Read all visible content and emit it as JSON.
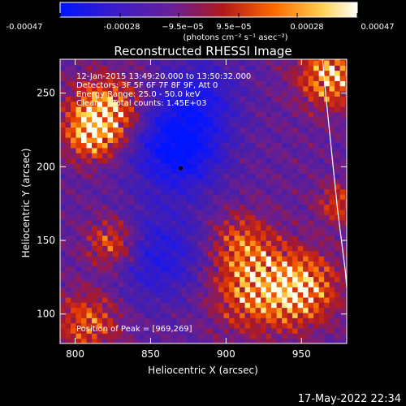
{
  "colorbar": {
    "ticks": [
      "-0.00047",
      "-0.00028",
      "−9.5e−05",
      "9.5e−05",
      "0.00028",
      "0.00047"
    ],
    "unit_label": "(photons cm⁻² s⁻¹ asec⁻²)",
    "colors": [
      "#0014ff",
      "#3a1cc8",
      "#6a2098",
      "#b01818",
      "#ff6a00",
      "#ffd050",
      "#ffffff"
    ]
  },
  "chart_data": {
    "type": "heatmap",
    "title": "Reconstructed RHESSI Image",
    "xlabel": "Heliocentric X (arcsec)",
    "ylabel": "Heliocentric Y (arcsec)",
    "xlim": [
      790,
      980
    ],
    "ylim": [
      80,
      273
    ],
    "xticks": [
      800,
      850,
      900,
      950
    ],
    "yticks": [
      100,
      150,
      200,
      250
    ],
    "info_lines": [
      "12-Jan-2015 13:49:20.000 to 13:50:32.000",
      "Detectors: 3F 5F 6F 7F 8F 9F, Att 0",
      "Energy Range: 25.0 - 50.0 keV",
      "Clean     Total counts: 1.45E+03"
    ],
    "peak_label": "Position of Peak = [969,269]",
    "peak_position": [
      969,
      269
    ],
    "color_range": [
      -0.00047,
      0.00047
    ],
    "limb_points": [
      [
        964,
        273
      ],
      [
        966,
        250
      ],
      [
        970,
        210
      ],
      [
        974,
        170
      ],
      [
        979,
        130
      ],
      [
        982,
        95
      ]
    ],
    "minimum_marker": [
      870,
      199
    ],
    "hot_regions": [
      {
        "x": 820,
        "y": 238,
        "intensity": 1.0,
        "sigma": 16
      },
      {
        "x": 810,
        "y": 222,
        "intensity": 0.8,
        "sigma": 12
      },
      {
        "x": 969,
        "y": 262,
        "intensity": 1.0,
        "sigma": 15
      },
      {
        "x": 975,
        "y": 175,
        "intensity": 0.6,
        "sigma": 10
      },
      {
        "x": 825,
        "y": 148,
        "intensity": 0.8,
        "sigma": 12
      },
      {
        "x": 808,
        "y": 95,
        "intensity": 0.7,
        "sigma": 15
      },
      {
        "x": 918,
        "y": 118,
        "intensity": 0.85,
        "sigma": 20
      },
      {
        "x": 950,
        "y": 118,
        "intensity": 0.95,
        "sigma": 17
      },
      {
        "x": 910,
        "y": 150,
        "intensity": 0.55,
        "sigma": 14
      }
    ],
    "cold_regions": [
      {
        "x": 868,
        "y": 213,
        "intensity": 0.95,
        "sigma": 20
      },
      {
        "x": 882,
        "y": 248,
        "intensity": 0.5,
        "sigma": 18
      },
      {
        "x": 855,
        "y": 140,
        "intensity": 0.55,
        "sigma": 22
      }
    ]
  },
  "footer": {
    "date": "17-May-2022 22:34"
  }
}
